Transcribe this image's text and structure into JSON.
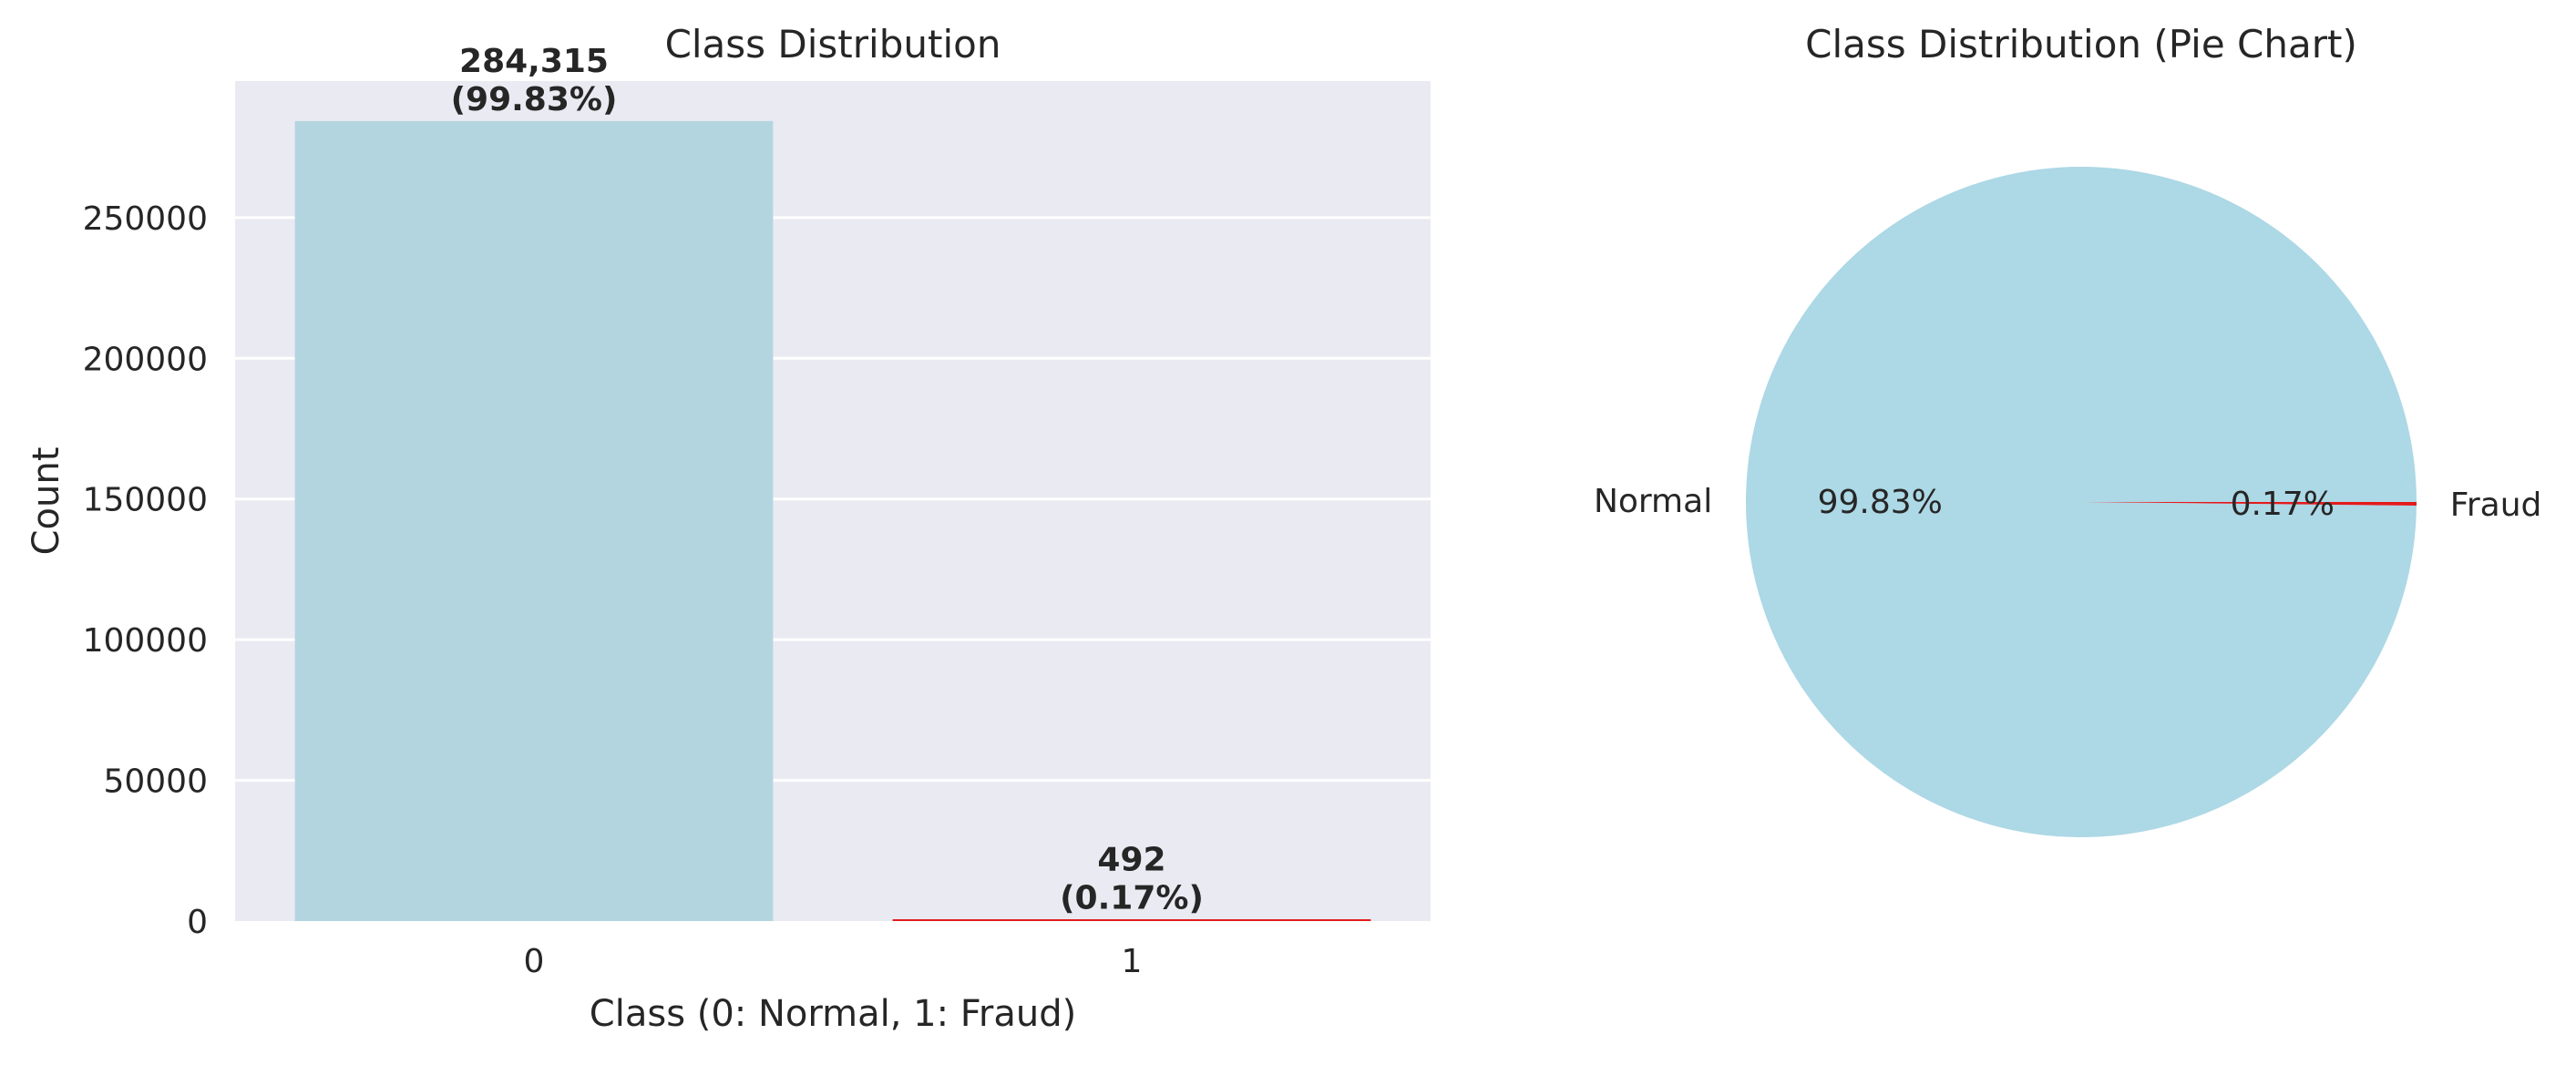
{
  "chart_data": [
    {
      "type": "bar",
      "title": "Class Distribution",
      "xlabel": "Class (0: Normal, 1: Fraud)",
      "ylabel": "Count",
      "categories": [
        "0",
        "1"
      ],
      "values": [
        284315,
        492
      ],
      "data_labels": [
        {
          "count": "284,315",
          "pct": "(99.83%)"
        },
        {
          "count": "492",
          "pct": "(0.17%)"
        }
      ],
      "yticks": [
        0,
        50000,
        100000,
        150000,
        200000,
        250000
      ],
      "ytick_labels": [
        "0",
        "50000",
        "100000",
        "150000",
        "200000",
        "250000"
      ],
      "ylim": [
        0,
        298530
      ],
      "grid": true,
      "colors": [
        "#b3d5e0",
        "#e41a1c"
      ],
      "background": "#eaeaf2"
    },
    {
      "type": "pie",
      "title": "Class Distribution (Pie Chart)",
      "labels": [
        "Normal",
        "Fraud"
      ],
      "values": [
        284315,
        492
      ],
      "pct_labels": [
        "99.83%",
        "0.17%"
      ],
      "colors": [
        "#add8e6",
        "#e41a1c"
      ]
    }
  ]
}
